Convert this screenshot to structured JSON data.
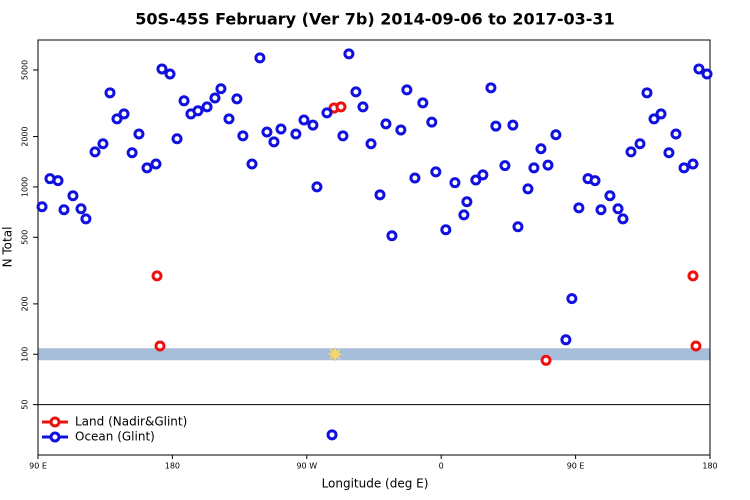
{
  "chart_data": {
    "type": "scatter",
    "title": "50S-45S February (Ver 7b)   2014-09-06 to 2017-03-31",
    "xlabel": "Longitude (deg E)",
    "ylabel": "N Total",
    "xlim": [
      90,
      540
    ],
    "ylim": [
      25,
      7550
    ],
    "log_y": true,
    "xticks": [
      {
        "value": 90,
        "label": "90 E"
      },
      {
        "value": 180,
        "label": "180"
      },
      {
        "value": 270,
        "label": "90 W"
      },
      {
        "value": 360,
        "label": "0"
      },
      {
        "value": 450,
        "label": "90 E"
      },
      {
        "value": 540,
        "label": "180"
      }
    ],
    "yticks": [
      50,
      100,
      200,
      500,
      1000,
      2000,
      5000
    ],
    "legend_position": "lower-left",
    "reference_band": {
      "value": 100,
      "color": "#a7bedb"
    },
    "highlight_point": {
      "x": 288.9,
      "y": 100,
      "color": "#f8d56e"
    },
    "series": [
      {
        "name": "Land (Nadir&Glint)",
        "color": "#ee1111",
        "x": [
          169.7,
          171.7,
          288.2,
          292.9,
          430.2,
          528.6,
          530.6
        ],
        "values": [
          294,
          112,
          2960,
          3010,
          92,
          294,
          112
        ]
      },
      {
        "name": "Ocean (Glint)",
        "color": "#1010e0",
        "x": [
          92.7,
          98,
          103.4,
          107.4,
          113.4,
          118.8,
          122.1,
          128.2,
          133.5,
          138.2,
          142.9,
          147.6,
          153,
          157.6,
          163,
          169,
          173,
          178.4,
          183.1,
          187.8,
          192.4,
          197.1,
          203.2,
          208.5,
          212.5,
          217.9,
          223.2,
          227.2,
          233.3,
          238.6,
          243.3,
          248,
          252.7,
          262.7,
          268.1,
          274.1,
          276.8,
          283.5,
          294.2,
          298.2,
          302.9,
          307.6,
          313,
          319,
          323,
          327,
          333,
          337,
          342.4,
          347.7,
          353.7,
          356.4,
          363.1,
          369.2,
          375.2,
          377.2,
          383.2,
          387.9,
          393.3,
          396.6,
          402.7,
          408,
          411.4,
          418.1,
          422.1,
          426.8,
          431.5,
          436.8,
          443.5,
          447.5,
          452.2,
          458.3,
          463,
          467,
          473,
          478.4,
          481.7,
          487.1,
          493.1,
          497.8,
          502.5,
          507.2,
          512.5,
          517.2,
          522.6,
          528.6,
          532.6,
          538,
          286.9
        ],
        "values": [
          761,
          1120,
          1090,
          730,
          885,
          740,
          644,
          1620,
          1810,
          3650,
          2550,
          2730,
          1600,
          2070,
          1300,
          1370,
          5070,
          4730,
          1940,
          3270,
          2730,
          2850,
          3010,
          3400,
          3860,
          2550,
          3360,
          2020,
          1370,
          5900,
          2130,
          1860,
          2220,
          2070,
          2510,
          2340,
          1000,
          2770,
          2020,
          6240,
          3700,
          3010,
          1810,
          897,
          2380,
          511,
          2190,
          3800,
          1130,
          3180,
          2440,
          1230,
          555,
          1060,
          681,
          815,
          1100,
          1180,
          3910,
          2310,
          1340,
          2340,
          578,
          973,
          1300,
          1690,
          1350,
          2050,
          122,
          215,
          750,
          1120,
          1090,
          730,
          885,
          740,
          644,
          1620,
          1810,
          3650,
          2550,
          2730,
          1600,
          2070,
          1300,
          1370,
          5070,
          4730,
          33
        ]
      }
    ]
  }
}
